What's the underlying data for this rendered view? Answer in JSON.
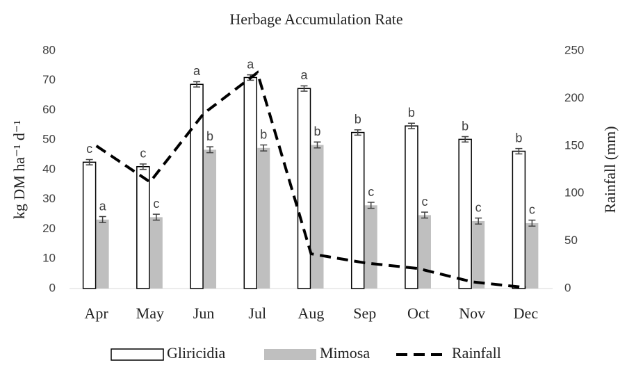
{
  "chart_data": {
    "type": "bar",
    "title": "Herbage Accumulation Rate",
    "y_label": "kg DM ha⁻¹ d⁻¹",
    "y2_label": "Rainfall (mm)",
    "categories": [
      "Apr",
      "May",
      "Jun",
      "Jul",
      "Aug",
      "Sep",
      "Oct",
      "Nov",
      "Dec"
    ],
    "ylim": [
      0,
      80
    ],
    "yticks": [
      0,
      10,
      20,
      30,
      40,
      50,
      60,
      70,
      80
    ],
    "y2lim": [
      0,
      250
    ],
    "y2ticks": [
      0,
      50,
      100,
      150,
      200,
      250
    ],
    "series": [
      {
        "name": "Gliricidia",
        "type": "bar",
        "color": "#ffffff",
        "edge": "#000000",
        "values": [
          42.5,
          41,
          68.7,
          71,
          67.3,
          52.5,
          54.7,
          50.2,
          46.2
        ],
        "errors": [
          0.9,
          0.9,
          0.9,
          0.9,
          0.9,
          0.9,
          0.9,
          0.9,
          0.9
        ],
        "letters": [
          "c",
          "c",
          "a",
          "a",
          "a",
          "b",
          "b",
          "b",
          "b"
        ]
      },
      {
        "name": "Mimosa",
        "type": "bar",
        "color": "#bfbfbf",
        "values": [
          23.2,
          24,
          46.7,
          47.3,
          48.3,
          28,
          24.7,
          22.7,
          22
        ],
        "errors": [
          1,
          1,
          1,
          1,
          1,
          1,
          1,
          1,
          1
        ],
        "letters": [
          "a",
          "c",
          "b",
          "b",
          "b",
          "c",
          "c",
          "c",
          "c"
        ]
      },
      {
        "name": "Rainfall",
        "type": "line",
        "axis": "y2",
        "color": "#000000",
        "dashed": true,
        "values": [
          150,
          112,
          184,
          227,
          36.5,
          27,
          21,
          7,
          1
        ]
      }
    ]
  }
}
